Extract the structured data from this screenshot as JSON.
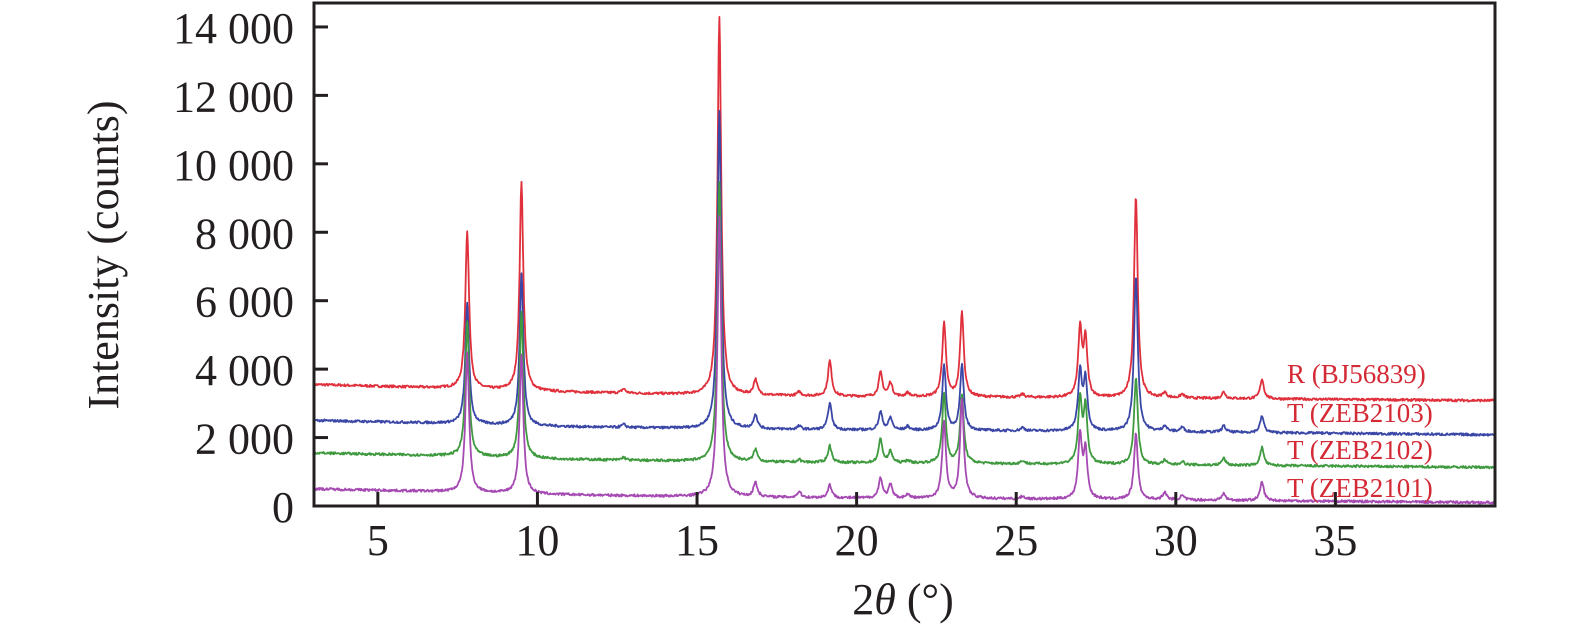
{
  "chart_data": {
    "type": "line",
    "title": "",
    "xlabel": "2θ (°)",
    "xlabel_parts": {
      "prefix": "2",
      "symbol": "θ",
      "unit": " (°)"
    },
    "ylabel": "Intensity (counts)",
    "xlim": [
      3,
      40
    ],
    "ylim": [
      0,
      14700
    ],
    "xticks": [
      5,
      10,
      15,
      20,
      25,
      30,
      35
    ],
    "xtick_labels": [
      "5",
      "10",
      "15",
      "20",
      "25",
      "30",
      "35"
    ],
    "yticks": [
      0,
      2000,
      4000,
      6000,
      8000,
      10000,
      12000,
      14000
    ],
    "ytick_labels": [
      "0",
      "2 000",
      "4 000",
      "6 000",
      "8 000",
      "10 000",
      "12 000",
      "14 000"
    ],
    "grid": false,
    "label_color": "#d42a36",
    "series": [
      {
        "name": "R (BJ56839)",
        "color": "#e0303c",
        "baseline": [
          [
            3,
            3550
          ],
          [
            7,
            3450
          ],
          [
            10,
            3350
          ],
          [
            15,
            3250
          ],
          [
            20,
            3200
          ],
          [
            30,
            3150
          ],
          [
            40,
            3080
          ]
        ],
        "peaks": [
          [
            7.8,
            8040
          ],
          [
            9.5,
            9450
          ],
          [
            12.7,
            3420
          ],
          [
            15.7,
            14270
          ],
          [
            16.83,
            3680
          ],
          [
            18.2,
            3330
          ],
          [
            19.16,
            4240
          ],
          [
            20.75,
            3890
          ],
          [
            21.06,
            3600
          ],
          [
            21.6,
            3300
          ],
          [
            22.74,
            5320
          ],
          [
            23.3,
            5640
          ],
          [
            25.2,
            3260
          ],
          [
            27.0,
            5120
          ],
          [
            27.17,
            4820
          ],
          [
            28.75,
            9050
          ],
          [
            29.65,
            3300
          ],
          [
            30.2,
            3260
          ],
          [
            31.5,
            3330
          ],
          [
            32.7,
            3710
          ]
        ]
      },
      {
        "name": "T (ZEB2103)",
        "color": "#3b47a6",
        "baseline": [
          [
            3,
            2500
          ],
          [
            7,
            2420
          ],
          [
            10,
            2330
          ],
          [
            15,
            2260
          ],
          [
            20,
            2220
          ],
          [
            30,
            2170
          ],
          [
            40,
            2080
          ]
        ],
        "peaks": [
          [
            7.8,
            5940
          ],
          [
            9.5,
            6780
          ],
          [
            12.7,
            2380
          ],
          [
            15.7,
            11550
          ],
          [
            16.83,
            2660
          ],
          [
            18.2,
            2330
          ],
          [
            19.16,
            3010
          ],
          [
            20.75,
            2740
          ],
          [
            21.06,
            2570
          ],
          [
            21.6,
            2320
          ],
          [
            22.74,
            4090
          ],
          [
            23.3,
            4090
          ],
          [
            25.2,
            2290
          ],
          [
            27.0,
            3890
          ],
          [
            27.17,
            3680
          ],
          [
            28.75,
            6750
          ],
          [
            29.65,
            2340
          ],
          [
            30.2,
            2300
          ],
          [
            31.5,
            2340
          ],
          [
            32.7,
            2630
          ]
        ]
      },
      {
        "name": "T (ZEB2102)",
        "color": "#3f9a3f",
        "baseline": [
          [
            3,
            1550
          ],
          [
            7,
            1470
          ],
          [
            10,
            1380
          ],
          [
            15,
            1300
          ],
          [
            20,
            1260
          ],
          [
            30,
            1200
          ],
          [
            40,
            1130
          ]
        ],
        "peaks": [
          [
            7.8,
            5400
          ],
          [
            9.5,
            5640
          ],
          [
            12.7,
            1420
          ],
          [
            15.7,
            9500
          ],
          [
            16.83,
            1640
          ],
          [
            18.2,
            1350
          ],
          [
            19.16,
            1760
          ],
          [
            20.75,
            1950
          ],
          [
            21.06,
            1590
          ],
          [
            21.6,
            1330
          ],
          [
            22.74,
            3270
          ],
          [
            23.3,
            3220
          ],
          [
            25.2,
            1320
          ],
          [
            27.0,
            3070
          ],
          [
            27.17,
            2820
          ],
          [
            28.75,
            3740
          ],
          [
            29.65,
            1330
          ],
          [
            30.2,
            1300
          ],
          [
            31.5,
            1400
          ],
          [
            32.7,
            1710
          ]
        ]
      },
      {
        "name": "T (ZEB2101)",
        "color": "#a54ab2",
        "baseline": [
          [
            3,
            500
          ],
          [
            7,
            420
          ],
          [
            10,
            340
          ],
          [
            15,
            270
          ],
          [
            20,
            230
          ],
          [
            30,
            180
          ],
          [
            40,
            100
          ]
        ],
        "peaks": [
          [
            7.8,
            4500
          ],
          [
            9.5,
            4440
          ],
          [
            15.7,
            8500
          ],
          [
            16.83,
            680
          ],
          [
            18.2,
            420
          ],
          [
            19.16,
            620
          ],
          [
            20.75,
            817
          ],
          [
            21.06,
            610
          ],
          [
            21.6,
            330
          ],
          [
            22.74,
            2430
          ],
          [
            23.3,
            3130
          ],
          [
            25.2,
            280
          ],
          [
            27.0,
            2050
          ],
          [
            27.17,
            1570
          ],
          [
            28.75,
            2130
          ],
          [
            29.65,
            390
          ],
          [
            30.2,
            300
          ],
          [
            31.5,
            360
          ],
          [
            32.7,
            706
          ]
        ]
      }
    ]
  }
}
